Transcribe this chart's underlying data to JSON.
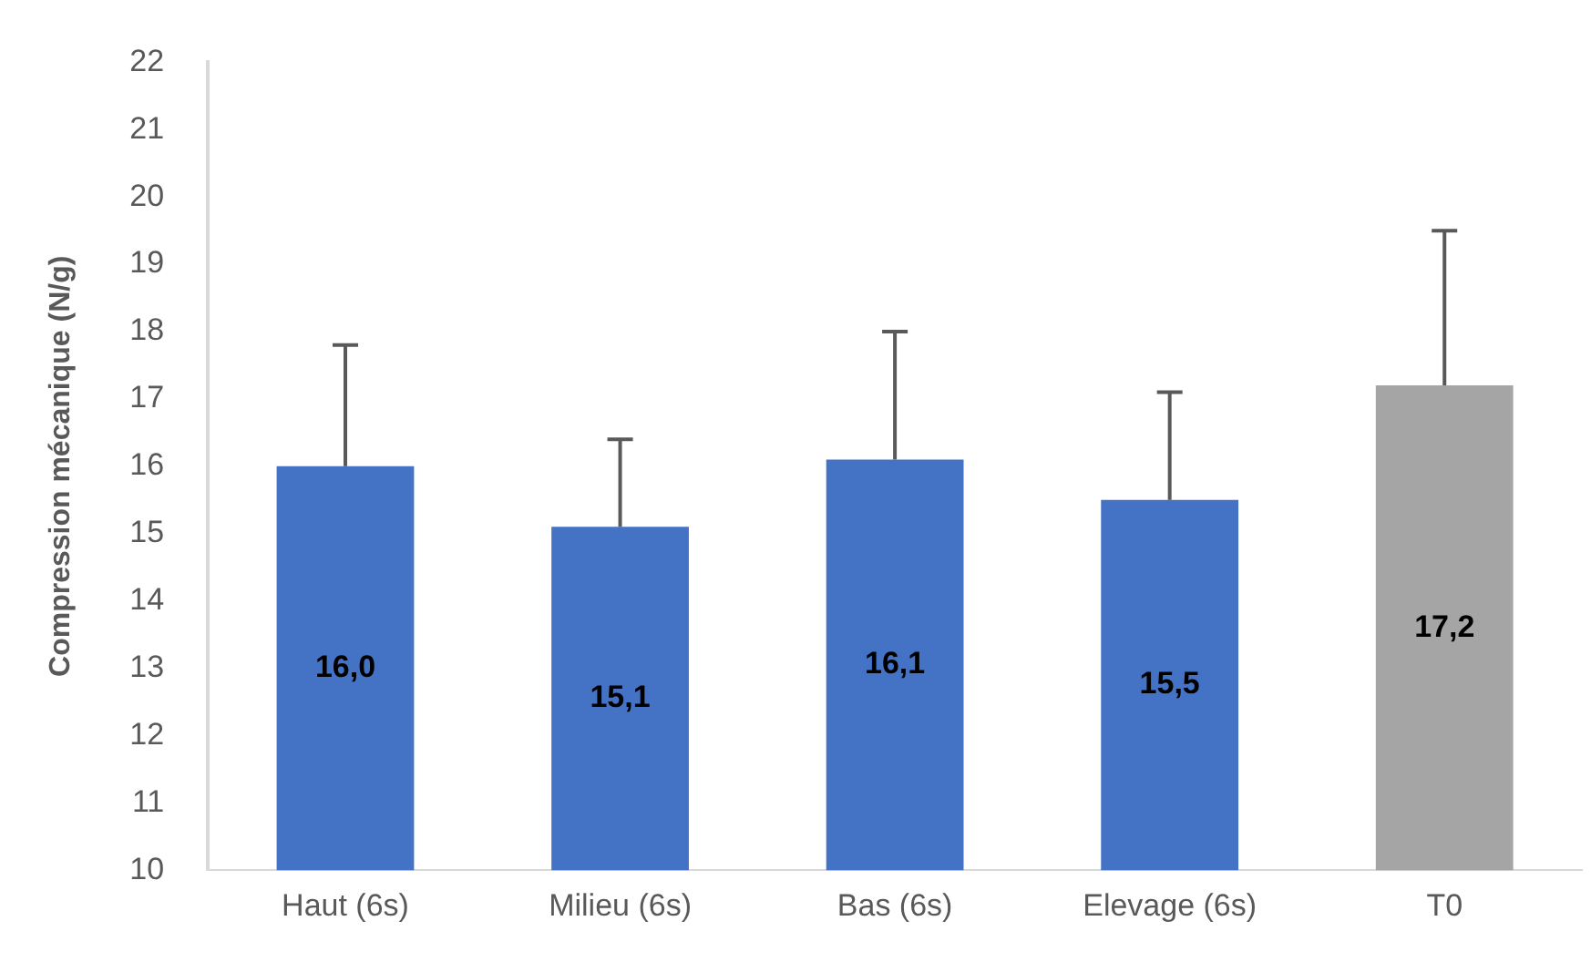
{
  "chart_data": {
    "type": "bar",
    "ylabel": "Compression mécanique (N/g)",
    "categories": [
      "Haut (6s)",
      "Milieu (6s)",
      "Bas (6s)",
      "Elevage (6s)",
      "T0"
    ],
    "values": [
      16.0,
      15.1,
      16.1,
      15.5,
      17.2
    ],
    "colors": [
      "#4472c4",
      "#4472c4",
      "#4472c4",
      "#4472c4",
      "#a5a5a5"
    ],
    "errors": [
      [
        16.0,
        17.8
      ],
      [
        15.1,
        16.4
      ],
      [
        16.1,
        18.0
      ],
      [
        15.5,
        17.1
      ],
      [
        17.2,
        19.5
      ]
    ],
    "value_labels": [
      "16,0",
      "15,1",
      "16,1",
      "15,5",
      "17,2"
    ],
    "ylim": [
      10,
      22
    ],
    "yticks": [
      10,
      11,
      12,
      13,
      14,
      15,
      16,
      17,
      18,
      19,
      20,
      21,
      22
    ],
    "grid": false,
    "legend": false
  }
}
